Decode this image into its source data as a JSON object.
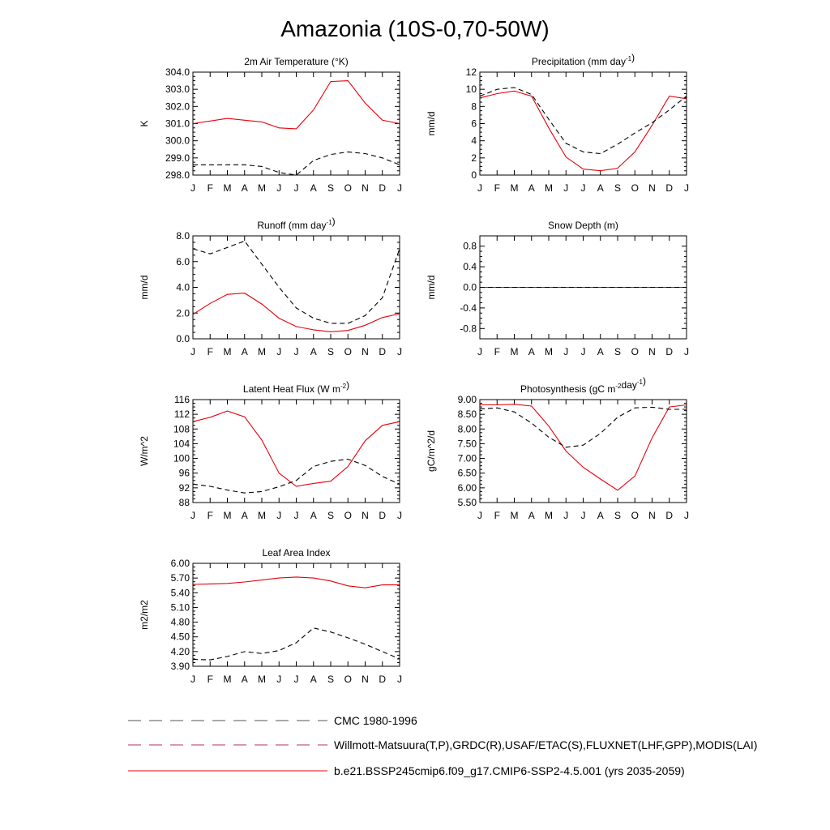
{
  "figure_title": "Amazonia (10S-0,70-50W)",
  "months": [
    "J",
    "F",
    "M",
    "A",
    "M",
    "J",
    "J",
    "A",
    "S",
    "O",
    "N",
    "D",
    "J"
  ],
  "legend": [
    {
      "label": "CMC 1980-1996",
      "style": "dashed",
      "color": "#555555"
    },
    {
      "label": "Willmott-Matsuura(T,P),GRDC(R),USAF/ETAC(S),FLUXNET(LHF,GPP),MODIS(LAI)",
      "style": "dashed",
      "color": "#b03060"
    },
    {
      "label": "b.e21.BSSP245cmip6.f09_g17.CMIP6-SSP2-4.5.001 (yrs 2035-2059)",
      "style": "solid",
      "color": "#e8000b"
    }
  ],
  "colors": {
    "model": "#e8000b",
    "obs": "#000000",
    "axis": "#000000"
  },
  "chart_data": [
    {
      "type": "line",
      "title": "2m Air Temperature (°K)",
      "ylabel": "K",
      "ylim": [
        298.0,
        304.0
      ],
      "yticks": [
        "298.0",
        "299.0",
        "300.0",
        "301.0",
        "302.0",
        "303.0",
        "304.0"
      ],
      "x": [
        "J",
        "F",
        "M",
        "A",
        "M",
        "J",
        "J",
        "A",
        "S",
        "O",
        "N",
        "D",
        "J"
      ],
      "series": [
        {
          "role": "model",
          "values": [
            301.0,
            301.15,
            301.3,
            301.2,
            301.1,
            300.75,
            300.7,
            301.8,
            303.45,
            303.5,
            302.2,
            301.2,
            301.0
          ]
        },
        {
          "role": "obs",
          "values": [
            298.6,
            298.6,
            298.6,
            298.6,
            298.5,
            298.15,
            298.0,
            298.85,
            299.2,
            299.35,
            299.25,
            299.0,
            298.6
          ]
        }
      ]
    },
    {
      "type": "line",
      "title": "Precipitation (mm day⁻¹)",
      "ylabel": "mm/d",
      "ylim": [
        0,
        12
      ],
      "yticks": [
        "0",
        "2",
        "4",
        "6",
        "8",
        "10",
        "12"
      ],
      "x": [
        "J",
        "F",
        "M",
        "A",
        "M",
        "J",
        "J",
        "A",
        "S",
        "O",
        "N",
        "D",
        "J"
      ],
      "series": [
        {
          "role": "model",
          "values": [
            9.0,
            9.5,
            9.8,
            9.2,
            5.5,
            2.1,
            0.7,
            0.5,
            0.8,
            2.7,
            5.8,
            9.2,
            8.9
          ]
        },
        {
          "role": "obs",
          "values": [
            9.2,
            10.0,
            10.2,
            9.4,
            6.5,
            3.7,
            2.7,
            2.5,
            3.6,
            4.9,
            6.1,
            7.6,
            9.2
          ]
        }
      ]
    },
    {
      "type": "line",
      "title": "Runoff (mm day⁻¹)",
      "ylabel": "mm/d",
      "ylim": [
        0.0,
        8.0
      ],
      "yticks": [
        "0.0",
        "2.0",
        "4.0",
        "6.0",
        "8.0"
      ],
      "x": [
        "J",
        "F",
        "M",
        "A",
        "M",
        "J",
        "J",
        "A",
        "S",
        "O",
        "N",
        "D",
        "J"
      ],
      "series": [
        {
          "role": "model",
          "values": [
            1.9,
            2.75,
            3.45,
            3.55,
            2.7,
            1.6,
            0.95,
            0.7,
            0.55,
            0.65,
            1.05,
            1.65,
            1.95
          ]
        },
        {
          "role": "obs",
          "values": [
            7.0,
            6.6,
            7.1,
            7.6,
            5.8,
            4.0,
            2.4,
            1.6,
            1.2,
            1.2,
            1.8,
            3.2,
            7.0
          ]
        }
      ]
    },
    {
      "type": "line",
      "title": "Snow Depth (m)",
      "ylabel": "mm/d",
      "ylim": [
        -1.0,
        1.0
      ],
      "yticks": [
        "-0.8",
        "-0.4",
        "0.0",
        "0.4",
        "0.8"
      ],
      "x": [
        "J",
        "F",
        "M",
        "A",
        "M",
        "J",
        "J",
        "A",
        "S",
        "O",
        "N",
        "D",
        "J"
      ],
      "series": [
        {
          "role": "model",
          "values": [
            0,
            0,
            0,
            0,
            0,
            0,
            0,
            0,
            0,
            0,
            0,
            0,
            0
          ]
        },
        {
          "role": "obs",
          "values": [
            0,
            0,
            0,
            0,
            0,
            0,
            0,
            0,
            0,
            0,
            0,
            0,
            0
          ]
        }
      ]
    },
    {
      "type": "line",
      "title": "Latent Heat Flux (W m⁻²)",
      "ylabel": "W/m^2",
      "ylim": [
        88,
        116
      ],
      "yticks": [
        "88",
        "92",
        "96",
        "100",
        "104",
        "108",
        "112",
        "116"
      ],
      "x": [
        "J",
        "F",
        "M",
        "A",
        "M",
        "J",
        "J",
        "A",
        "S",
        "O",
        "N",
        "D",
        "J"
      ],
      "series": [
        {
          "role": "model",
          "values": [
            110.0,
            111.2,
            112.9,
            111.3,
            105.0,
            96.0,
            92.4,
            93.2,
            93.8,
            97.8,
            104.8,
            109.0,
            110.0
          ]
        },
        {
          "role": "obs",
          "values": [
            93.0,
            92.4,
            91.4,
            90.6,
            91.0,
            92.3,
            94.0,
            97.8,
            99.2,
            99.8,
            98.1,
            95.1,
            93.0
          ]
        }
      ]
    },
    {
      "type": "line",
      "title": "Photosynthesis (gC m⁻²day⁻¹)",
      "ylabel": "gC/m^2/d",
      "ylim": [
        5.5,
        9.0
      ],
      "yticks": [
        "5.50",
        "6.00",
        "6.50",
        "7.00",
        "7.50",
        "8.00",
        "8.50",
        "9.00"
      ],
      "x": [
        "J",
        "F",
        "M",
        "A",
        "M",
        "J",
        "J",
        "A",
        "S",
        "O",
        "N",
        "D",
        "J"
      ],
      "series": [
        {
          "role": "model",
          "values": [
            8.82,
            8.82,
            8.84,
            8.78,
            8.1,
            7.25,
            6.7,
            6.3,
            5.92,
            6.4,
            7.7,
            8.75,
            8.82
          ]
        },
        {
          "role": "obs",
          "values": [
            8.68,
            8.72,
            8.58,
            8.2,
            7.72,
            7.38,
            7.45,
            7.85,
            8.4,
            8.72,
            8.74,
            8.67,
            8.67
          ]
        }
      ]
    },
    {
      "type": "line",
      "title": "Leaf Area Index",
      "ylabel": "m2/m2",
      "ylim": [
        3.9,
        6.0
      ],
      "yticks": [
        "3.90",
        "4.20",
        "4.50",
        "4.80",
        "5.10",
        "5.40",
        "5.70",
        "6.00"
      ],
      "x": [
        "J",
        "F",
        "M",
        "A",
        "M",
        "J",
        "J",
        "A",
        "S",
        "O",
        "N",
        "D",
        "J"
      ],
      "series": [
        {
          "role": "model",
          "values": [
            5.57,
            5.58,
            5.59,
            5.62,
            5.66,
            5.7,
            5.72,
            5.7,
            5.64,
            5.54,
            5.5,
            5.56,
            5.56
          ]
        },
        {
          "role": "obs",
          "values": [
            4.04,
            4.03,
            4.1,
            4.2,
            4.16,
            4.22,
            4.38,
            4.68,
            4.6,
            4.48,
            4.35,
            4.2,
            4.05
          ]
        }
      ]
    }
  ]
}
